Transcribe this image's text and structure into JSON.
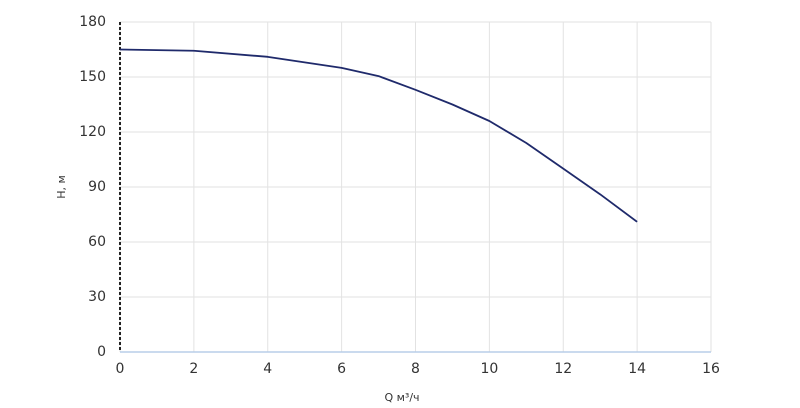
{
  "chart_data": {
    "type": "line",
    "x_label": "Q м³/ч",
    "y_label": "H, м",
    "x": [
      0,
      2,
      4,
      6,
      7,
      8,
      9,
      10,
      11,
      12,
      13,
      14
    ],
    "series": [
      {
        "color": "#1f2a6b",
        "values": [
          165,
          164.3,
          161,
          155,
          150.5,
          143,
          135,
          126,
          114,
          100,
          86,
          71
        ]
      }
    ],
    "xlim": [
      0,
      16
    ],
    "xticks": [
      0,
      2,
      4,
      6,
      8,
      10,
      12,
      14,
      16
    ],
    "ylim": [
      0,
      180
    ],
    "yticks": [
      0,
      30,
      60,
      90,
      120,
      150,
      180
    ],
    "grid": true
  }
}
